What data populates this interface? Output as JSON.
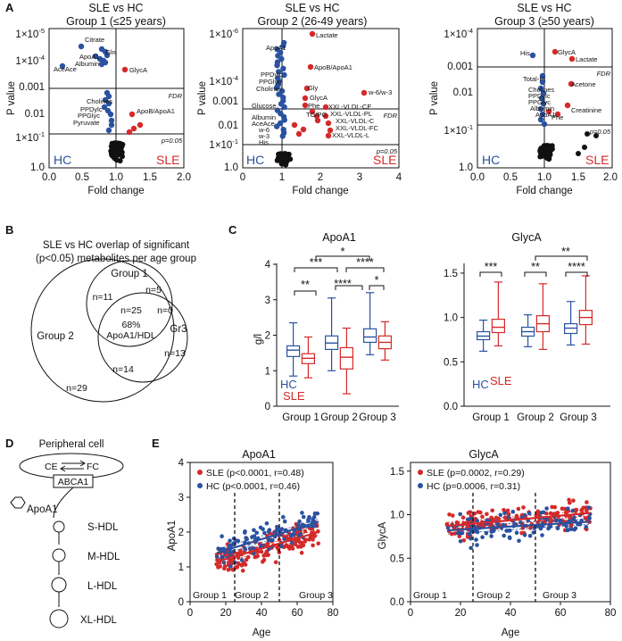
{
  "panel_letters": {
    "A": "A",
    "B": "B",
    "C": "C",
    "D": "D",
    "E": "E"
  },
  "volcano": {
    "xlabel": "Fold change",
    "ylabel": "P value",
    "fdr_label": "FDR",
    "p05_label": "p=0.05",
    "hc_label": "HC",
    "sle_label": "SLE",
    "plots": [
      {
        "title1": "SLE vs HC",
        "title2": "Group 1 (≤25 years)",
        "yticks": [
          "1×10",
          "1×10",
          "0.001",
          "0.01",
          "1×10",
          "1.0"
        ],
        "ysups": [
          "-5",
          "-4",
          "",
          "",
          "-1",
          ""
        ],
        "xticks": [
          "0.0",
          "0.5",
          "1.0",
          "1.5",
          "2.0"
        ],
        "labels": [
          "Citrate",
          "Gln",
          "ApoA1",
          "Albumin",
          "AceAce",
          "GlycA",
          "Cholines",
          "PPDylc",
          "PPGlyc",
          "Pyruvate",
          "ApoB/ApoA1"
        ]
      },
      {
        "title1": "SLE vs HC",
        "title2": "Group 2 (26-49 years)",
        "yticks": [
          "1×10",
          "1×10",
          "0.001",
          "0.01",
          "1×10",
          "1.0"
        ],
        "ysups": [
          "-6",
          "-4",
          "",
          "",
          "-1",
          ""
        ],
        "xticks": [
          "0",
          "1",
          "2",
          "3",
          "4"
        ],
        "labels": [
          "Lactate",
          "ApoA1",
          "PPDylc",
          "PPGlyc",
          "Cholines",
          "ApoB/ApoA1",
          "Gly",
          "GlycA",
          "Phe",
          "Glucose",
          "TG/PG",
          "Albumin",
          "AceAce",
          "w-6",
          "w-3",
          "His",
          "XXL-VLDL-CE",
          "XXL-VLDL-PL",
          "XXL-VLDL-C",
          "XXL-VLDL-FC",
          "XXL-VLDL-L",
          "w-6/w-3"
        ]
      },
      {
        "title1": "SLE vs HC",
        "title2": "Group 3 (≥50 years)",
        "yticks": [
          "1×10",
          "0.001",
          "0.01",
          "1×10",
          "1.0"
        ],
        "ysups": [
          "-4",
          "",
          "",
          "-1",
          ""
        ],
        "xticks": [
          "0.0",
          "0.5",
          "1.0",
          "1.5",
          "2.0"
        ],
        "labels": [
          "His",
          "GlycA",
          "Lactate",
          "Total-PI",
          "Cholines",
          "PPDylc",
          "PPGlyc",
          "Albumin",
          "ApoA1",
          "Acetone",
          "Creatinine",
          "Phe"
        ]
      }
    ]
  },
  "venn": {
    "title1": "SLE vs HC overlap of significant",
    "title2": "(p<0.05) metabolites per age group",
    "group1": "Group 1",
    "group2": "Group 2",
    "group3": "Gr3",
    "n11": "n=11",
    "n5": "n=5",
    "n25": "n=25",
    "pct": "68%",
    "pct_sub": "ApoA1/HDL",
    "n0": "n=0",
    "n13": "n=13",
    "n14": "n=14",
    "n29": "n=29"
  },
  "box": {
    "groups": [
      "Group 1",
      "Group 2",
      "Group 3"
    ],
    "hc_label": "HC",
    "sle_label": "SLE",
    "apoa1": {
      "title": "ApoA1",
      "ylabel": "g/l",
      "yticks": [
        "0",
        "1",
        "2",
        "3",
        "4"
      ],
      "sig": [
        "***",
        "**",
        "*",
        "****",
        "****",
        "*"
      ],
      "chart_data": {
        "type": "box",
        "ylim": [
          0,
          4
        ],
        "series": [
          {
            "name": "HC",
            "boxes": [
              {
                "min": 0.85,
                "q1": 1.4,
                "med": 1.58,
                "q3": 1.7,
                "max": 2.35
              },
              {
                "min": 1.0,
                "q1": 1.6,
                "med": 1.78,
                "q3": 1.98,
                "max": 3.05
              },
              {
                "min": 1.45,
                "q1": 1.8,
                "med": 1.95,
                "q3": 2.18,
                "max": 3.2
              }
            ]
          },
          {
            "name": "SLE",
            "boxes": [
              {
                "min": 0.8,
                "q1": 1.2,
                "med": 1.35,
                "q3": 1.48,
                "max": 1.95
              },
              {
                "min": 0.35,
                "q1": 1.05,
                "med": 1.38,
                "q3": 1.65,
                "max": 2.2
              },
              {
                "min": 1.3,
                "q1": 1.62,
                "med": 1.8,
                "q3": 1.98,
                "max": 2.38
              }
            ]
          }
        ]
      }
    },
    "glyca": {
      "title": "GlycA",
      "yticks": [
        "0.0",
        "0.5",
        "1.0",
        "1.5"
      ],
      "sig": [
        "***",
        "**",
        "**",
        "****"
      ],
      "chart_data": {
        "type": "box",
        "ylim": [
          0,
          1.6
        ],
        "series": [
          {
            "name": "HC",
            "boxes": [
              {
                "min": 0.62,
                "q1": 0.75,
                "med": 0.79,
                "q3": 0.84,
                "max": 0.97
              },
              {
                "min": 0.67,
                "q1": 0.79,
                "med": 0.84,
                "q3": 0.89,
                "max": 1.03
              },
              {
                "min": 0.69,
                "q1": 0.82,
                "med": 0.88,
                "q3": 0.93,
                "max": 1.18
              }
            ]
          },
          {
            "name": "SLE",
            "boxes": [
              {
                "min": 0.68,
                "q1": 0.83,
                "med": 0.89,
                "q3": 0.98,
                "max": 1.4
              },
              {
                "min": 0.64,
                "q1": 0.84,
                "med": 0.93,
                "q3": 1.02,
                "max": 1.38
              },
              {
                "min": 0.7,
                "q1": 0.92,
                "med": 1.0,
                "q3": 1.08,
                "max": 1.47
              }
            ]
          }
        ]
      }
    }
  },
  "diagram": {
    "cell": "Peripheral cell",
    "ce": "CE",
    "fc": "FC",
    "abca1": "ABCA1",
    "apoa1": "ApoA1",
    "steps": [
      "S-HDL",
      "M-HDL",
      "L-HDL",
      "XL-HDL"
    ]
  },
  "scatter": {
    "xlabel": "Age",
    "xticks": [
      "0",
      "20",
      "40",
      "60",
      "80"
    ],
    "group_labels": [
      "Group 1",
      "Group 2",
      "Group 3"
    ],
    "apoa1": {
      "title": "ApoA1",
      "ylabel": "ApoA1",
      "yticks": [
        "0",
        "1",
        "2",
        "3",
        "4"
      ],
      "legend_sle": "SLE (p<0.0001, r=0.48)",
      "legend_hc": "HC (p<0.0001, r=0.46)",
      "chart_data": {
        "type": "scatter",
        "xlim": [
          0,
          80
        ],
        "ylim": [
          0,
          4
        ],
        "series": [
          {
            "name": "SLE",
            "trend": [
              [
                15,
                1.15
              ],
              [
                72,
                2.0
              ]
            ]
          },
          {
            "name": "HC",
            "trend": [
              [
                15,
                1.4
              ],
              [
                72,
                2.3
              ]
            ]
          }
        ],
        "cutoffs": [
          25,
          50
        ]
      }
    },
    "glyca": {
      "title": "GlycA",
      "ylabel": "GlycA",
      "yticks": [
        "0.0",
        "0.5",
        "1.0",
        "1.5"
      ],
      "legend_sle": "SLE (p=0.0002, r=0.29)",
      "legend_hc": "HC (p=0.0006, r=0.31)",
      "chart_data": {
        "type": "scatter",
        "xlim": [
          0,
          80
        ],
        "ylim": [
          0,
          1.6
        ],
        "series": [
          {
            "name": "SLE",
            "trend": [
              [
                15,
                0.87
              ],
              [
                72,
                1.02
              ]
            ]
          },
          {
            "name": "HC",
            "trend": [
              [
                15,
                0.82
              ],
              [
                72,
                0.92
              ]
            ]
          }
        ],
        "cutoffs": [
          25,
          50
        ]
      }
    }
  },
  "colors": {
    "hc": "#2a52a0",
    "sle": "#d42a2a",
    "black": "#111111"
  }
}
